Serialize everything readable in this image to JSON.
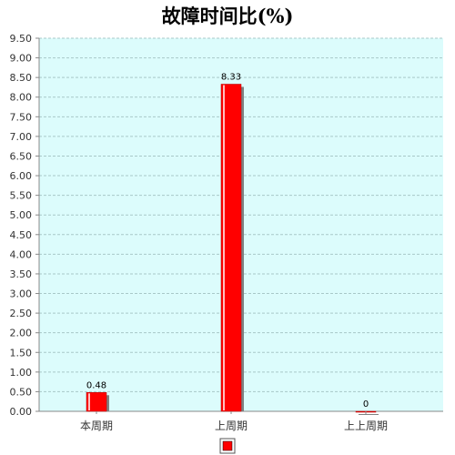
{
  "chart_data": {
    "type": "bar",
    "title": "故障时间比(%)",
    "categories": [
      "本周期",
      "上周期",
      "上上周期"
    ],
    "values": [
      0.48,
      8.33,
      0
    ],
    "data_labels": [
      "0.48",
      "8.33",
      "0"
    ],
    "ylim": [
      0,
      9.5
    ],
    "yticks": [
      "0.00",
      "0.50",
      "1.00",
      "1.50",
      "2.00",
      "2.50",
      "3.00",
      "3.50",
      "4.00",
      "4.50",
      "5.00",
      "5.50",
      "6.00",
      "6.50",
      "7.00",
      "7.50",
      "8.00",
      "8.50",
      "9.00",
      "9.50"
    ],
    "grid": true,
    "legend": "bottom-center",
    "colors": {
      "plot_background": "#dcfcfc",
      "bar_fill": "#ff0000",
      "bar_shadow": "#808080",
      "grid": "#a8c8c8",
      "axis": "#888888"
    }
  }
}
